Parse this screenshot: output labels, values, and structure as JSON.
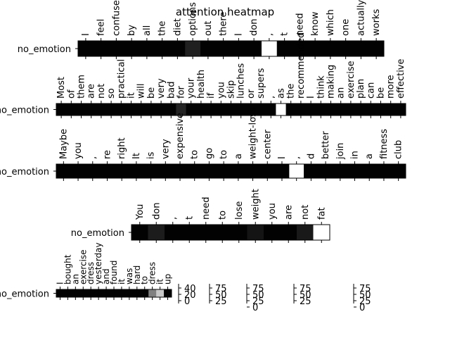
{
  "chart_data": {
    "type": "heatmap",
    "title": "attention heatmap",
    "row_label": "no_emotion",
    "cmap": "gray",
    "rows": [
      {
        "tokens": [
          "I",
          "feel",
          "confused",
          "by",
          "all",
          "the",
          "diet",
          "options",
          "out",
          "there",
          "I",
          "don",
          ",",
          "t",
          "need",
          "know",
          "which",
          "one",
          "actually",
          "works"
        ],
        "values": [
          2,
          2,
          2,
          2,
          2,
          2,
          2,
          32,
          2,
          2,
          2,
          2,
          255,
          2,
          2,
          2,
          2,
          2,
          2,
          2
        ]
      },
      {
        "tokens": [
          "Most",
          "of",
          "them",
          "are",
          "not",
          "so",
          "practical",
          "it",
          "will",
          "be",
          "very",
          "bad",
          "for",
          "your",
          "health",
          "if",
          "you",
          "skip",
          "lunches",
          "or",
          "supers",
          ",",
          "as",
          "the",
          "recommended",
          "I",
          "think",
          "making",
          "an",
          "exercise",
          "plan",
          "can",
          "be",
          "more",
          "effective"
        ],
        "values": [
          2,
          2,
          2,
          2,
          2,
          2,
          2,
          2,
          2,
          2,
          2,
          2,
          35,
          2,
          2,
          2,
          2,
          2,
          2,
          2,
          2,
          2,
          255,
          2,
          2,
          2,
          2,
          2,
          2,
          2,
          2,
          2,
          2,
          2,
          2
        ]
      },
      {
        "tokens": [
          "Maybe",
          "you",
          ",",
          "re",
          "right",
          "It",
          "is",
          "very",
          "expensive",
          "to",
          "go",
          "to",
          "a",
          "weight-loss",
          "center",
          "I",
          ",",
          "d",
          "better",
          "join",
          "in",
          "a",
          "fitness",
          "club"
        ],
        "values": [
          2,
          2,
          2,
          2,
          2,
          2,
          2,
          2,
          2,
          2,
          2,
          2,
          2,
          2,
          2,
          2,
          255,
          2,
          2,
          2,
          2,
          2,
          2,
          2
        ]
      },
      {
        "tokens": [
          "You",
          "don",
          ",",
          "t",
          "need",
          "to",
          "lose",
          "weight",
          "you",
          "are",
          "not",
          "fat"
        ],
        "values": [
          2,
          28,
          2,
          2,
          2,
          2,
          2,
          20,
          2,
          2,
          25,
          255
        ]
      },
      {
        "tokens": [
          "I",
          "bought",
          "an",
          "exercise",
          "dress",
          "yesterday",
          "and",
          "found",
          "it",
          "was",
          "hard",
          "to",
          "dress",
          "it",
          "up"
        ],
        "values": [
          2,
          2,
          2,
          2,
          2,
          2,
          2,
          2,
          2,
          2,
          2,
          2,
          128,
          200,
          2
        ]
      }
    ],
    "colorbars": [
      {
        "ticks": [
          "40",
          "20",
          "0"
        ]
      },
      {
        "ticks": [
          "75",
          "50",
          "25"
        ]
      },
      {
        "ticks": [
          "75",
          "50",
          "25",
          "0"
        ]
      },
      {
        "ticks": [
          "75",
          "50",
          "25"
        ]
      },
      {
        "ticks": [
          "75",
          "50",
          "25",
          "0"
        ]
      }
    ]
  }
}
